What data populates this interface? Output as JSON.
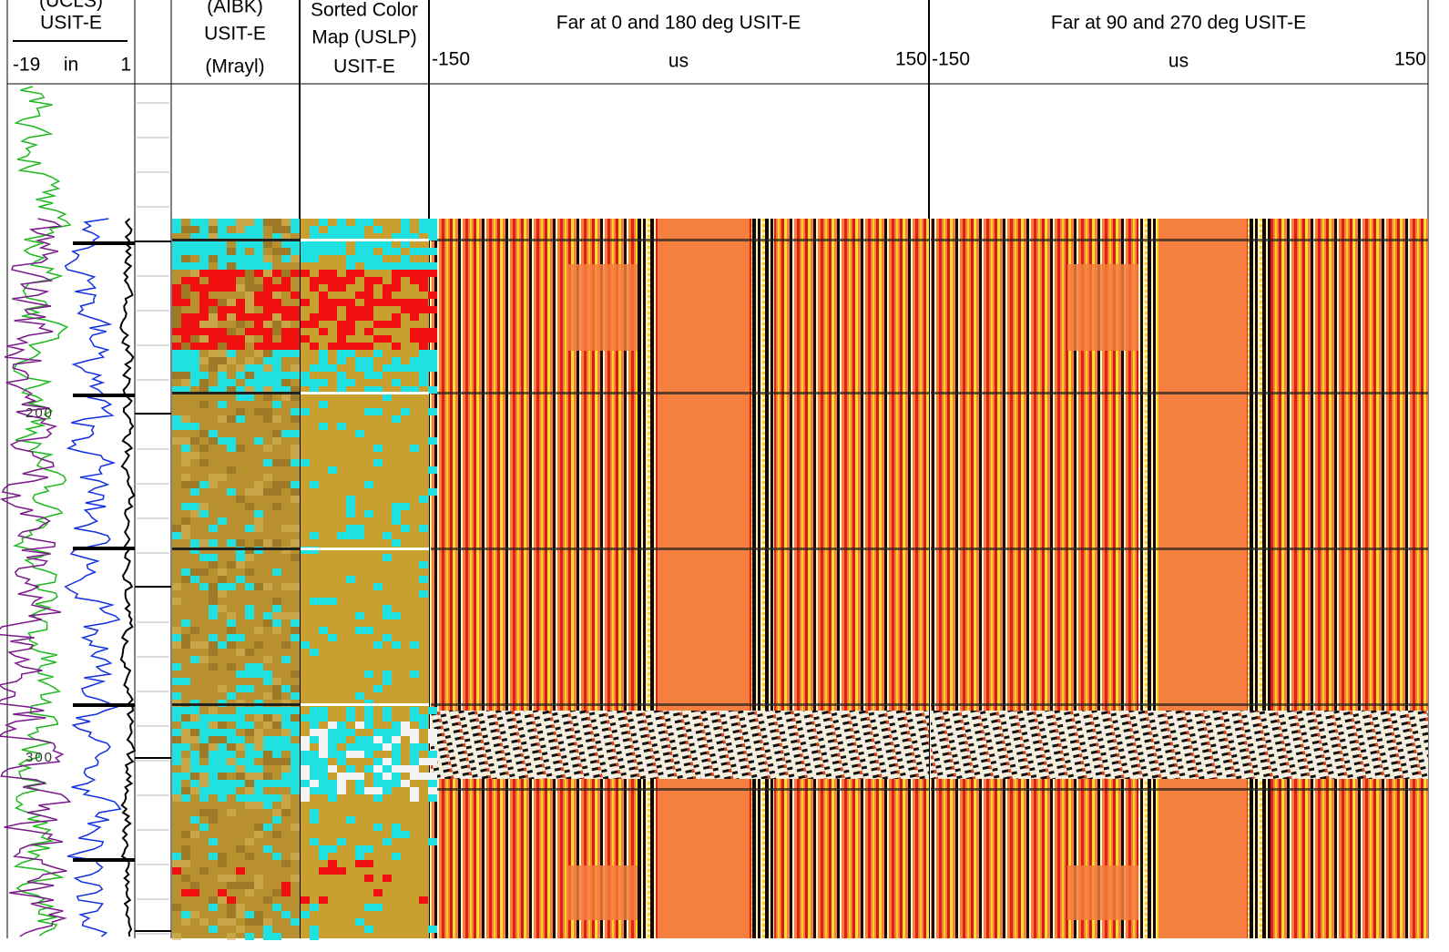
{
  "tracks": [
    {
      "header": [
        "(UCLS)",
        "USIT-E"
      ],
      "scale": [
        "-19",
        "in",
        "1"
      ]
    },
    {
      "header": [
        "(AIBK)",
        "USIT-E",
        "(Mrayl)"
      ]
    },
    {
      "header": [
        "Sorted Color",
        "Map (USLP)",
        "USIT-E"
      ]
    },
    {
      "header": [
        "Far at 0 and 180 deg USIT-E"
      ],
      "scale": [
        "-150",
        "us",
        "150"
      ]
    },
    {
      "header": [
        "Far at 90 and 270 deg USIT-E"
      ],
      "scale": [
        "-150",
        "us",
        "150"
      ]
    }
  ],
  "depth_labels": [
    "200",
    "300"
  ]
}
